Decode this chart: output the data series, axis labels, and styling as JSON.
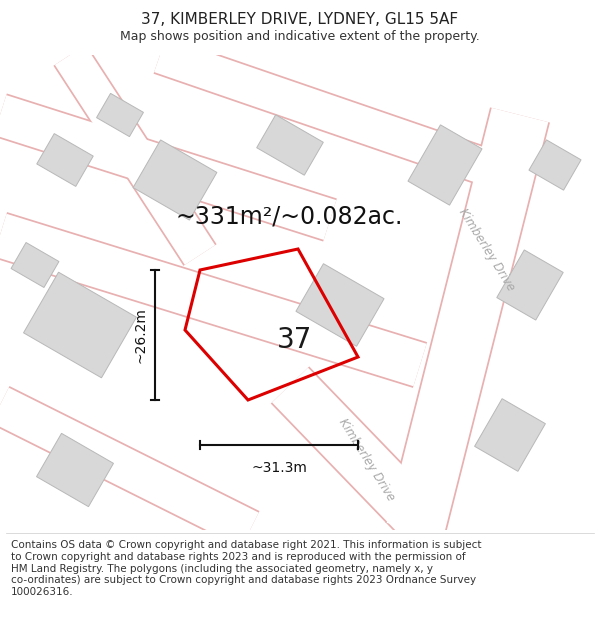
{
  "title": "37, KIMBERLEY DRIVE, LYDNEY, GL15 5AF",
  "subtitle": "Map shows position and indicative extent of the property.",
  "footer": "Contains OS data © Crown copyright and database right 2021. This information is subject\nto Crown copyright and database rights 2023 and is reproduced with the permission of\nHM Land Registry. The polygons (including the associated geometry, namely x, y\nco-ordinates) are subject to Crown copyright and database rights 2023 Ordnance Survey\n100026316.",
  "area_label": "~331m²/~0.082ac.",
  "width_label": "~31.3m",
  "height_label": "~26.2m",
  "plot_number": "37",
  "map_bg": "#f2f0f0",
  "road_color": "#ffffff",
  "road_outline_color": "#e8b0b0",
  "building_color": "#d8d8d8",
  "building_outline": "#b8b8b8",
  "plot_color": "#dd0000",
  "dim_line_color": "#111111",
  "title_color": "#222222",
  "text_color": "#333333",
  "road_label_color": "#aaaaaa",
  "title_fontsize": 11,
  "subtitle_fontsize": 9,
  "footer_fontsize": 7.5,
  "area_fontsize": 17,
  "dim_fontsize": 10,
  "plot_num_fontsize": 20,
  "road_label_fontsize": 8.5
}
